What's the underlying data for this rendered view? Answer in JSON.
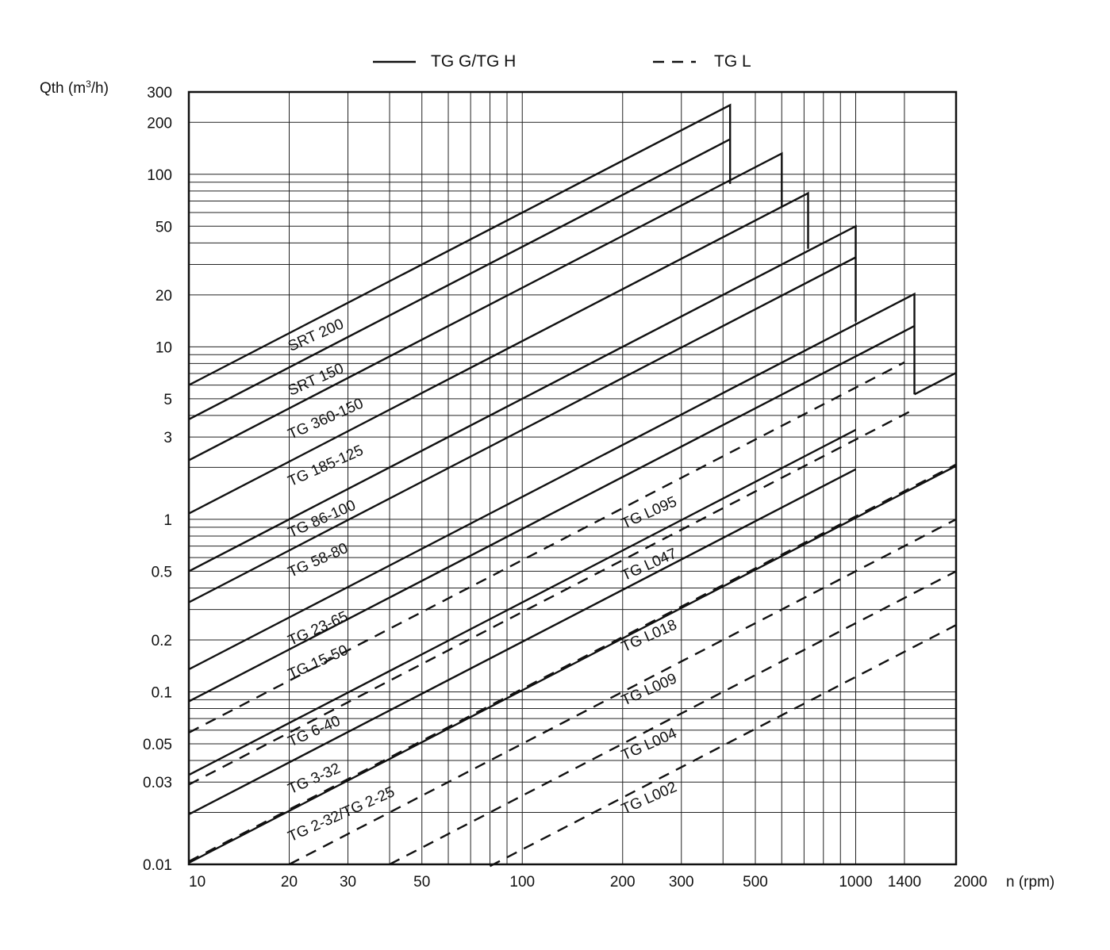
{
  "chart_data": {
    "type": "line",
    "xscale": "log",
    "yscale": "log",
    "xlim": [
      10,
      2000
    ],
    "ylim": [
      0.01,
      300
    ],
    "xlabel": "n (rpm)",
    "ylabel_main": "Qth (m",
    "ylabel_sup": "3",
    "ylabel_end": "/h)",
    "x_ticks": [
      {
        "v": 10,
        "label": "10"
      },
      {
        "v": 20,
        "label": "20"
      },
      {
        "v": 30,
        "label": "30"
      },
      {
        "v": 50,
        "label": "50"
      },
      {
        "v": 100,
        "label": "100"
      },
      {
        "v": 200,
        "label": "200"
      },
      {
        "v": 300,
        "label": "300"
      },
      {
        "v": 500,
        "label": "500"
      },
      {
        "v": 1000,
        "label": "1000"
      },
      {
        "v": 1400,
        "label": "1400"
      },
      {
        "v": 2000,
        "label": "2000"
      }
    ],
    "y_ticks": [
      {
        "v": 300,
        "label": "300"
      },
      {
        "v": 200,
        "label": "200"
      },
      {
        "v": 100,
        "label": "100"
      },
      {
        "v": 50,
        "label": "50"
      },
      {
        "v": 20,
        "label": "20"
      },
      {
        "v": 10,
        "label": "10"
      },
      {
        "v": 5,
        "label": "5"
      },
      {
        "v": 3,
        "label": "3"
      },
      {
        "v": 1,
        "label": "1"
      },
      {
        "v": 0.5,
        "label": "0.5"
      },
      {
        "v": 0.2,
        "label": "0.2"
      },
      {
        "v": 0.1,
        "label": "0.1"
      },
      {
        "v": 0.05,
        "label": "0.05"
      },
      {
        "v": 0.03,
        "label": "0.03"
      },
      {
        "v": 0.01,
        "label": "0.01"
      }
    ],
    "grid": true,
    "legend": {
      "placement": "top",
      "entries": [
        {
          "style": "solid",
          "label": "TG G/TG H"
        },
        {
          "style": "dashed",
          "label": "TG L"
        }
      ]
    },
    "series": [
      {
        "name": "SRT 200",
        "style": "solid",
        "x0": 10,
        "x1": 420,
        "y_at_10": 6.0,
        "drop_to": 88,
        "label_at": [
          20,
          9.4
        ]
      },
      {
        "name": "SRT 150",
        "style": "solid",
        "x0": 10,
        "x1": 420,
        "y_at_10": 3.8,
        "drop_to": null,
        "label_at": [
          20,
          5.2
        ]
      },
      {
        "name": "TG 360-150",
        "style": "solid",
        "x0": 10,
        "x1": 600,
        "y_at_10": 2.2,
        "drop_to": 65,
        "label_at": [
          20,
          2.9
        ]
      },
      {
        "name": "TG 185-125",
        "style": "solid",
        "x0": 10,
        "x1": 720,
        "y_at_10": 1.08,
        "drop_to": 37,
        "label_at": [
          20,
          1.55
        ]
      },
      {
        "name": "TG 86-100",
        "style": "solid",
        "x0": 10,
        "x1": 1000,
        "y_at_10": 0.5,
        "drop_to": 14,
        "label_at": [
          20,
          0.78
        ]
      },
      {
        "name": "TG 58-80",
        "style": "solid",
        "x0": 10,
        "x1": 1000,
        "y_at_10": 0.33,
        "drop_to": null,
        "label_at": [
          20,
          0.46
        ]
      },
      {
        "name": "TG 23-65",
        "style": "solid",
        "x0": 10,
        "x1": 1500,
        "y_at_10": 0.135,
        "drop_to": 5.3,
        "label_at": [
          20,
          0.185
        ]
      },
      {
        "name": "TG 15-50",
        "style": "solid",
        "x0": 10,
        "x1": 1500,
        "y_at_10": 0.088,
        "drop_to": null,
        "label_at": [
          20,
          0.118
        ]
      },
      {
        "name": "TG 6-40",
        "style": "solid",
        "x0": 10,
        "x1": 1000,
        "y_at_10": 0.033,
        "drop_to": null,
        "label_at": [
          20,
          0.048
        ]
      },
      {
        "name": "TG 3-32",
        "style": "solid",
        "x0": 10,
        "x1": 1000,
        "y_at_10": 0.0195,
        "drop_to": null,
        "label_at": [
          20,
          0.0255
        ]
      },
      {
        "name": "TG 2-32/TG 2-25",
        "style": "solid",
        "x0": 10,
        "x1": 2000,
        "y_at_10": 0.0102,
        "drop_to": null,
        "label_at": [
          20,
          0.0135
        ]
      },
      {
        "name": "TG L095",
        "style": "dashed",
        "x0": 10,
        "x1": 1400,
        "y_at_10": 0.058,
        "drop_to": null,
        "label_at": [
          200,
          0.88
        ]
      },
      {
        "name": "TG L047",
        "style": "dashed",
        "x0": 10,
        "x1": 1500,
        "y_at_10": 0.029,
        "drop_to": null,
        "label_at": [
          200,
          0.44
        ]
      },
      {
        "name": "TG L018",
        "style": "dashed",
        "x0": 10,
        "x1": 2000,
        "y_at_10": 0.0104,
        "drop_to": null,
        "label_at": [
          200,
          0.17
        ]
      },
      {
        "name": "TG L009",
        "style": "dashed",
        "x0": 20,
        "x1": 2000,
        "y_at_10": 0.005,
        "drop_to": null,
        "label_at": [
          200,
          0.083
        ]
      },
      {
        "name": "TG L004",
        "style": "dashed",
        "x0": 40,
        "x1": 2000,
        "y_at_10": 0.0025,
        "drop_to": null,
        "label_at": [
          200,
          0.04
        ]
      },
      {
        "name": "TG L002",
        "style": "dashed",
        "x0": 80,
        "x1": 2000,
        "y_at_10": 0.00122,
        "drop_to": null,
        "label_at": [
          200,
          0.0195
        ]
      }
    ]
  }
}
